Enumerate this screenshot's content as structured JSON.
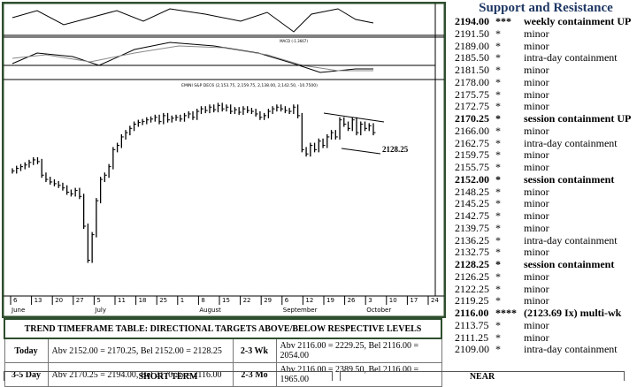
{
  "chart": {
    "type": "bar",
    "title": "EMINI S&P DEC6 (2,153.75, 2,159.75, 2,138.00, 2,142.50, -10.7500)",
    "indicator_label": "MACD (-1.3667)",
    "annotation": "2128.25",
    "x_ticks": [
      "6",
      "13",
      "20",
      "27",
      "5",
      "11",
      "18",
      "25",
      "1",
      "8",
      "15",
      "22",
      "29",
      "6",
      "12",
      "19",
      "26",
      "3",
      "10",
      "17",
      "24"
    ],
    "months": [
      "June",
      "July",
      "August",
      "September",
      "October"
    ],
    "ylim": [
      1960,
      2200
    ],
    "values": [
      2105,
      2108,
      2110,
      2112,
      2115,
      2118,
      2116,
      2100,
      2095,
      2092,
      2090,
      2088,
      2085,
      2080,
      2078,
      2082,
      2075,
      2040,
      2000,
      2030,
      2070,
      2095,
      2100,
      2110,
      2130,
      2135,
      2145,
      2150,
      2155,
      2160,
      2162,
      2163,
      2165,
      2166,
      2168,
      2163,
      2170,
      2165,
      2167,
      2168,
      2166,
      2170,
      2172,
      2168,
      2175,
      2178,
      2176,
      2180,
      2177,
      2182,
      2178,
      2180,
      2175,
      2177,
      2174,
      2178,
      2176,
      2175,
      2172,
      2168,
      2170,
      2175,
      2178,
      2180,
      2178,
      2176,
      2175,
      2180,
      2170,
      2130,
      2125,
      2135,
      2130,
      2140,
      2135,
      2145,
      2150,
      2145,
      2165,
      2160,
      2155,
      2165,
      2150,
      2160,
      2155,
      2158,
      2150
    ]
  },
  "levels": {
    "title": "Support and Resistance",
    "rows": [
      {
        "price": "2194.00",
        "stars": "***",
        "label": "weekly containment UP",
        "bold": true
      },
      {
        "price": "2191.50",
        "stars": "*",
        "label": "minor"
      },
      {
        "price": "2189.00",
        "stars": "*",
        "label": "minor"
      },
      {
        "price": "2185.50",
        "stars": "*",
        "label": "intra-day containment"
      },
      {
        "price": "2181.50",
        "stars": "*",
        "label": "minor"
      },
      {
        "price": "2178.00",
        "stars": "*",
        "label": "minor"
      },
      {
        "price": "2175.75",
        "stars": "*",
        "label": "minor"
      },
      {
        "price": "2172.75",
        "stars": "*",
        "label": "minor"
      },
      {
        "price": "2170.25",
        "stars": "*",
        "label": "session containment UP",
        "bold": true
      },
      {
        "price": "2166.00",
        "stars": "*",
        "label": "minor"
      },
      {
        "price": "2162.75",
        "stars": "*",
        "label": "intra-day containment"
      },
      {
        "price": "2159.75",
        "stars": "*",
        "label": "minor"
      },
      {
        "price": "2155.75",
        "stars": "*",
        "label": "minor"
      },
      {
        "price": "2152.00",
        "stars": "*",
        "label": "session containment",
        "bold": true
      },
      {
        "price": "2148.25",
        "stars": "*",
        "label": "minor"
      },
      {
        "price": "2145.25",
        "stars": "*",
        "label": "minor"
      },
      {
        "price": "2142.75",
        "stars": "*",
        "label": "minor"
      },
      {
        "price": "2139.75",
        "stars": "*",
        "label": "minor"
      },
      {
        "price": "2136.25",
        "stars": "*",
        "label": "intra-day containment"
      },
      {
        "price": "2132.75",
        "stars": "*",
        "label": "minor"
      },
      {
        "price": "2128.25",
        "stars": "*",
        "label": "session containment",
        "bold": true
      },
      {
        "price": "2126.25",
        "stars": "*",
        "label": "minor"
      },
      {
        "price": "2122.25",
        "stars": "*",
        "label": "minor"
      },
      {
        "price": "2119.25",
        "stars": "*",
        "label": "minor"
      },
      {
        "price": "2116.00",
        "stars": "****",
        "label": "(2123.69 Ix) multi-wk",
        "bold": true
      },
      {
        "price": "2113.75",
        "stars": "*",
        "label": "minor"
      },
      {
        "price": "2111.25",
        "stars": "*",
        "label": "minor"
      },
      {
        "price": "2109.00",
        "stars": "*",
        "label": "intra-day containment"
      }
    ]
  },
  "trend_table": {
    "title": "TREND TIMEFRAME TABLE: DIRECTIONAL TARGETS ABOVE/BELOW RESPECTIVE LEVELS",
    "rows": [
      [
        "Today",
        "Abv 2152.00 = 2170.25, Bel 2152.00 = 2128.25",
        "2-3 Wk",
        "Abv 2116.00 = 2229.25, Bel 2116.00 = 2054.00"
      ],
      [
        "3-5 Day",
        "Abv 2170.25 = 2194.00, Bel 2170.25 = 2116.00",
        "2-3 Mo",
        "Abv 2116.00 = 2389.50, Bel 2116.00 = 1965.00"
      ]
    ]
  },
  "footer": {
    "left": "SHORT TERM",
    "right": "NEAR"
  }
}
